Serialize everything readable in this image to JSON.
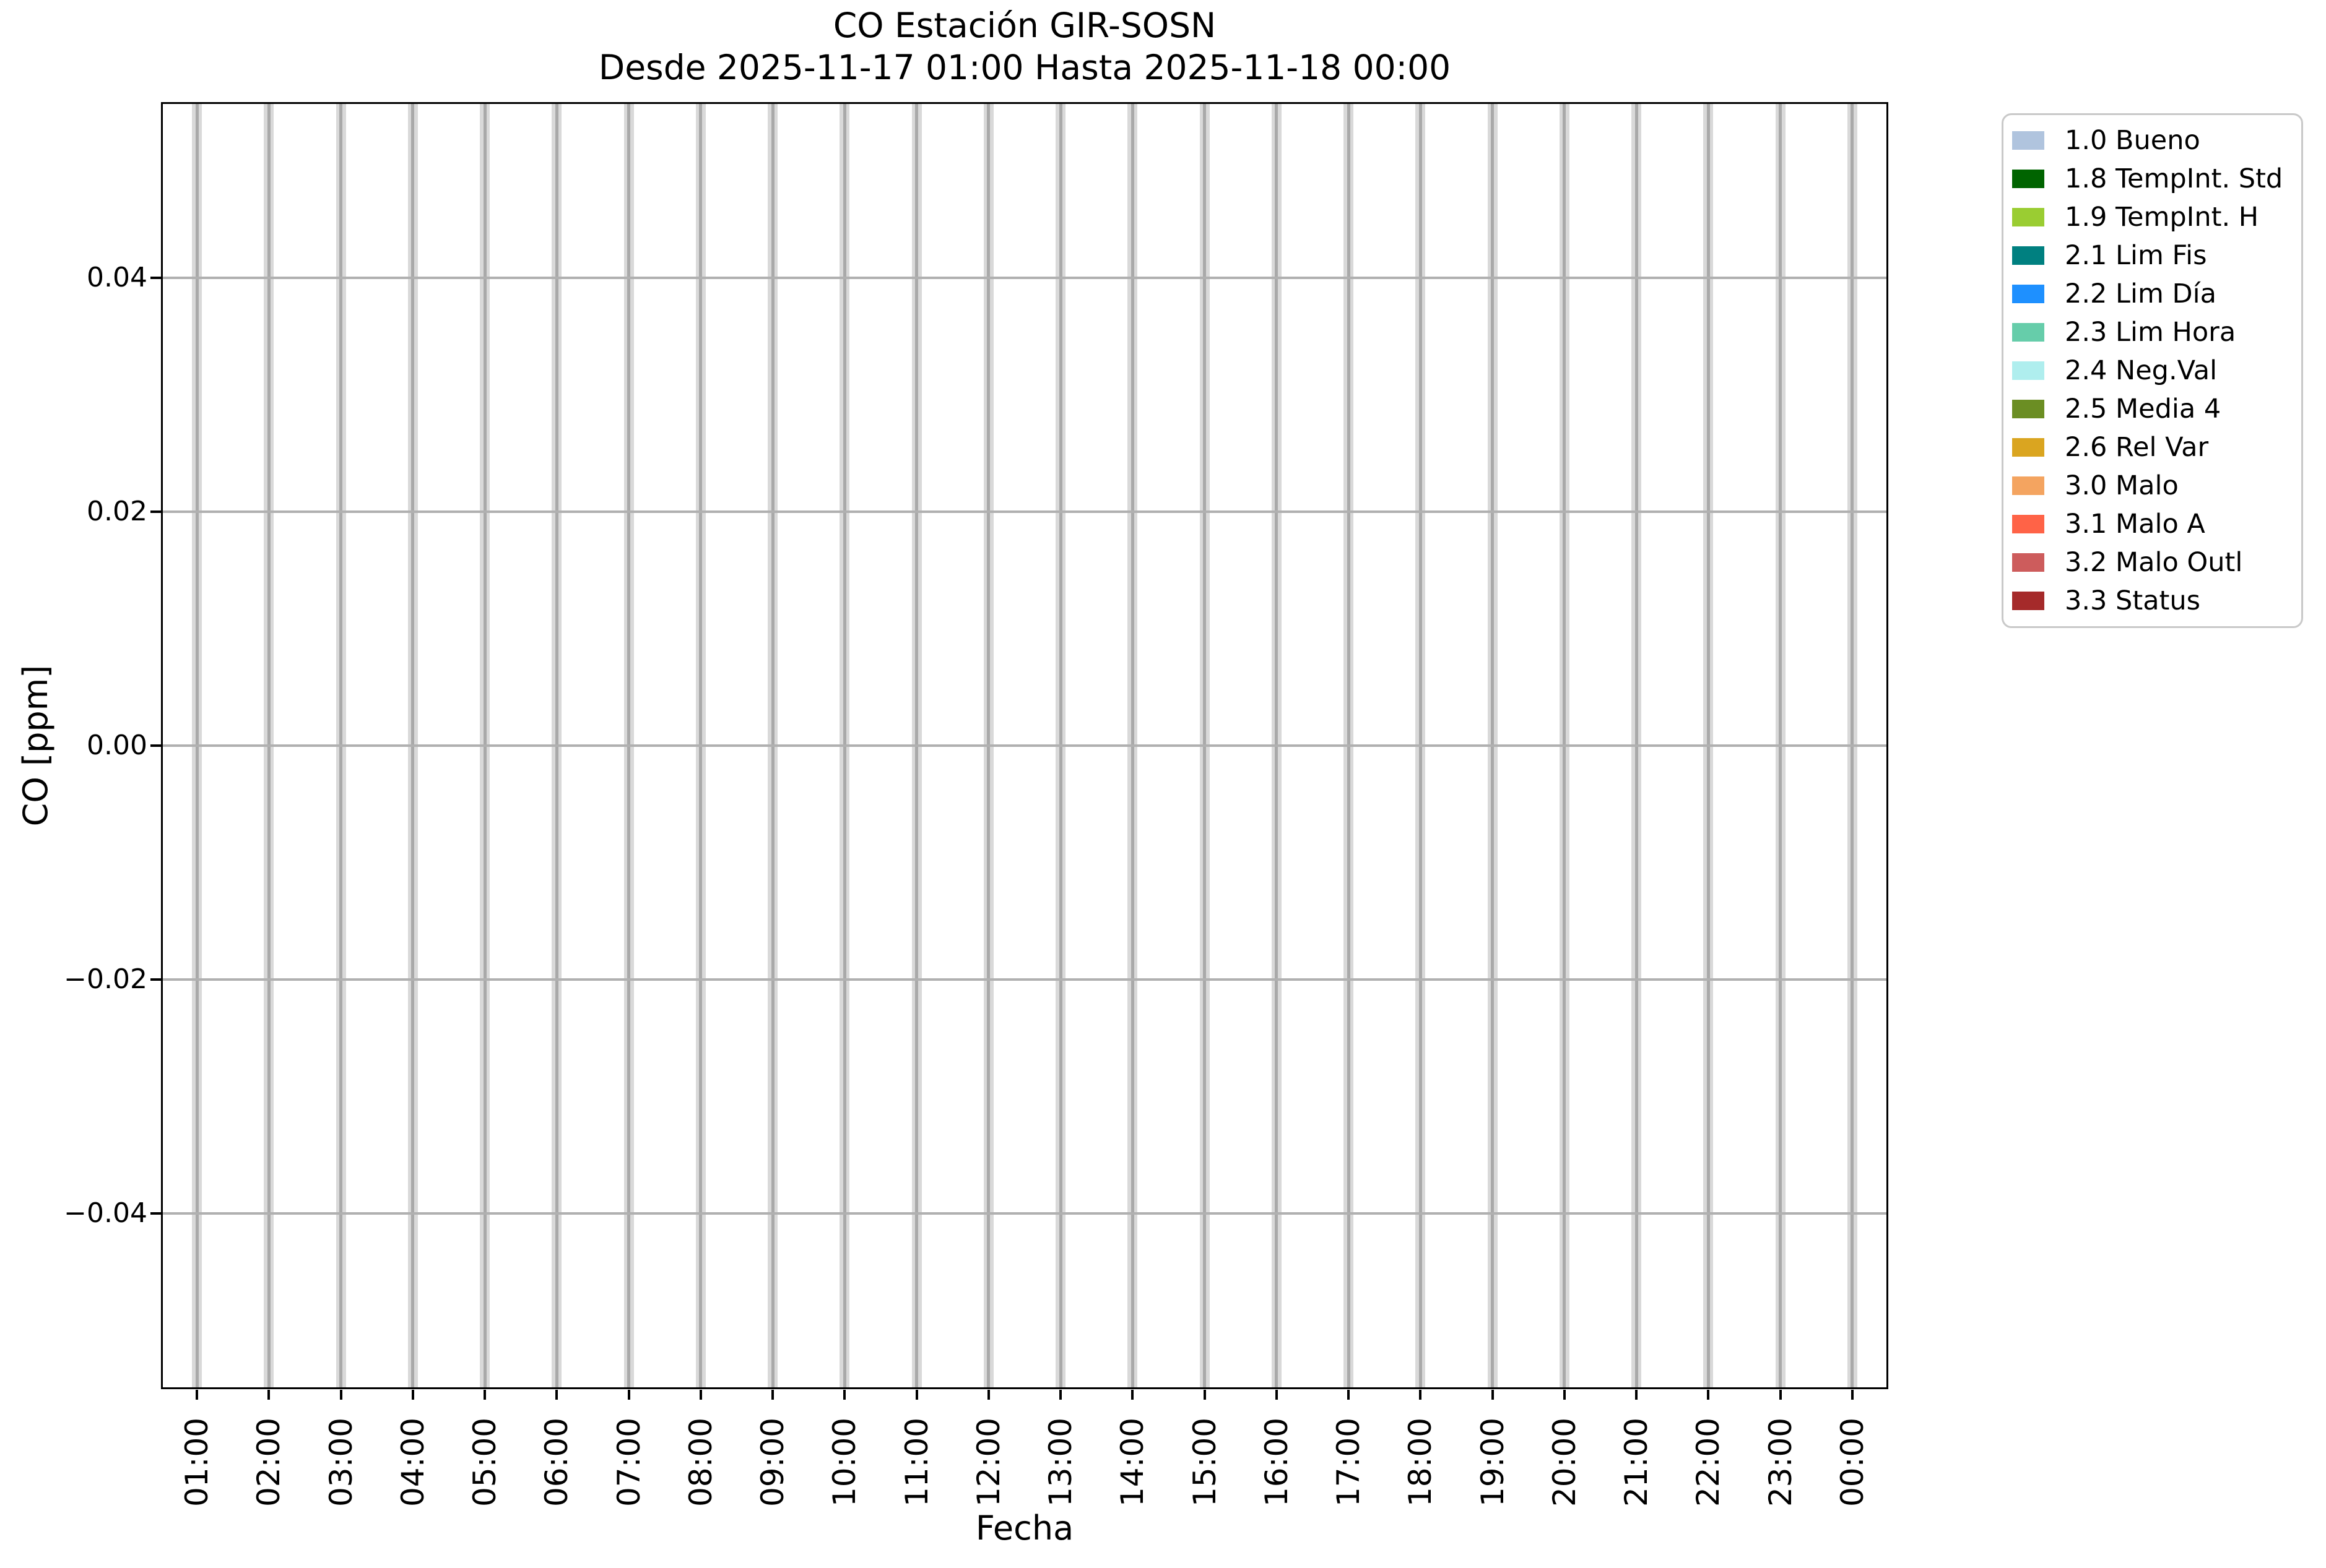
{
  "figure": {
    "background": "#ffffff"
  },
  "title": {
    "line1": "CO Estación GIR-SOSN",
    "line2": "Desde 2025-11-17 01:00 Hasta 2025-11-18 00:00"
  },
  "axes": {
    "x": {
      "label": "Fecha",
      "categories": [
        "01:00",
        "02:00",
        "03:00",
        "04:00",
        "05:00",
        "06:00",
        "07:00",
        "08:00",
        "09:00",
        "10:00",
        "11:00",
        "12:00",
        "13:00",
        "14:00",
        "15:00",
        "16:00",
        "17:00",
        "18:00",
        "19:00",
        "20:00",
        "21:00",
        "22:00",
        "23:00",
        "00:00"
      ]
    },
    "y": {
      "label": "CO [ppm]",
      "limits": [
        -0.055,
        0.055
      ],
      "ticks": [
        {
          "label": "0.04",
          "value": 0.04
        },
        {
          "label": "0.02",
          "value": 0.02
        },
        {
          "label": "0.00",
          "value": 0.0
        },
        {
          "label": "−0.02",
          "value": -0.02
        },
        {
          "label": "−0.04",
          "value": -0.04
        }
      ]
    }
  },
  "grid": {
    "stripe_band_color": "#d9d9d9",
    "vertical_gridline_color": "#a9a9a9",
    "horizontal_gridline_color": "#b0b0b0"
  },
  "legend": {
    "items": [
      {
        "label": "1.0 Bueno",
        "color": "#b0c4de"
      },
      {
        "label": "1.8 TempInt. Std",
        "color": "#006400"
      },
      {
        "label": "1.9 TempInt. H",
        "color": "#9acd32"
      },
      {
        "label": "2.1 Lim Fis",
        "color": "#008080"
      },
      {
        "label": "2.2 Lim Día",
        "color": "#1e90ff"
      },
      {
        "label": "2.3 Lim Hora",
        "color": "#66cdaa"
      },
      {
        "label": "2.4 Neg.Val",
        "color": "#afeeee"
      },
      {
        "label": "2.5 Media 4",
        "color": "#6b8e23"
      },
      {
        "label": "2.6 Rel Var",
        "color": "#daa520"
      },
      {
        "label": "3.0 Malo",
        "color": "#f4a460"
      },
      {
        "label": "3.1 Malo A",
        "color": "#ff6347"
      },
      {
        "label": "3.2 Malo Outl",
        "color": "#cd5c5c"
      },
      {
        "label": "3.3 Status",
        "color": "#a52a2a"
      }
    ]
  },
  "chart_data": {
    "type": "bar",
    "title": "CO Estación GIR-SOSN",
    "subtitle": "Desde 2025-11-17 01:00 Hasta 2025-11-18 00:00",
    "xlabel": "Fecha",
    "ylabel": "CO [ppm]",
    "categories": [
      "01:00",
      "02:00",
      "03:00",
      "04:00",
      "05:00",
      "06:00",
      "07:00",
      "08:00",
      "09:00",
      "10:00",
      "11:00",
      "12:00",
      "13:00",
      "14:00",
      "15:00",
      "16:00",
      "17:00",
      "18:00",
      "19:00",
      "20:00",
      "21:00",
      "22:00",
      "23:00",
      "00:00"
    ],
    "values": [
      null,
      null,
      null,
      null,
      null,
      null,
      null,
      null,
      null,
      null,
      null,
      null,
      null,
      null,
      null,
      null,
      null,
      null,
      null,
      null,
      null,
      null,
      null,
      null
    ],
    "ylim": [
      -0.055,
      0.055
    ],
    "yticks": [
      0.04,
      0.02,
      0.0,
      -0.02,
      -0.04
    ],
    "grid": true,
    "legend_position": "outside-upper-right"
  }
}
